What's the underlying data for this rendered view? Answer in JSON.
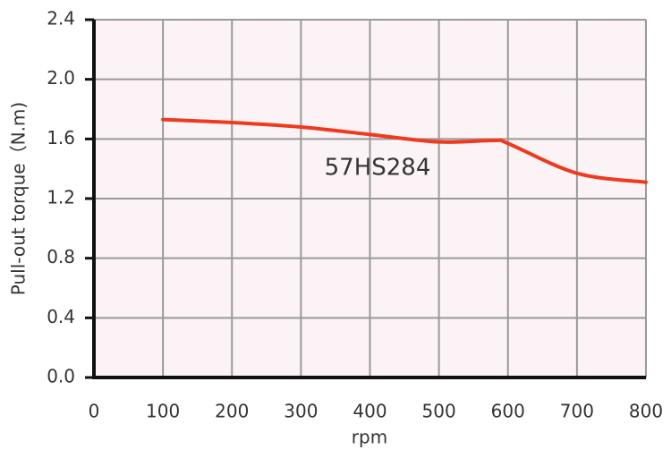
{
  "chart_data": {
    "type": "line",
    "annotation": "57HS284",
    "x_label": "rpm",
    "y_label": "Pull-out torque（N.m)",
    "x": [
      100,
      200,
      300,
      400,
      500,
      580,
      600,
      700,
      800
    ],
    "series": [
      {
        "color": "#ef3a1d",
        "values": [
          1.73,
          1.71,
          1.68,
          1.63,
          1.58,
          1.59,
          1.57,
          1.37,
          1.31
        ]
      }
    ],
    "xlim": [
      0,
      800
    ],
    "xticks": [
      0,
      100,
      200,
      300,
      400,
      500,
      600,
      700,
      800
    ],
    "ylim": [
      0,
      2.4
    ],
    "yticks": [
      {
        "value": 0,
        "label": "0.0"
      },
      0.4,
      0.8,
      1.2,
      1.6,
      {
        "value": 2,
        "label": "2.0"
      },
      2.4
    ],
    "grid": true,
    "background": "#fbf3f6"
  }
}
